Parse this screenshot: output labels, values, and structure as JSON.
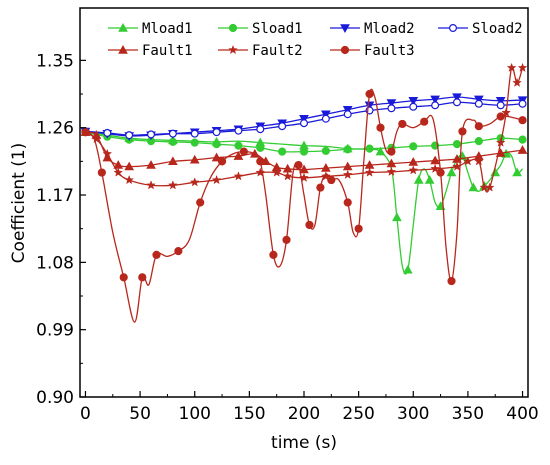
{
  "chart_data": {
    "type": "line",
    "title": "",
    "xlabel": "time (s)",
    "ylabel": "Coefficient (1)",
    "xlim": [
      -5,
      405
    ],
    "ylim": [
      0.9,
      1.42
    ],
    "xticks": [
      0,
      50,
      100,
      150,
      200,
      250,
      300,
      350,
      400
    ],
    "yticks": [
      0.9,
      0.99,
      1.08,
      1.17,
      1.26,
      1.35
    ],
    "ytick_labels": [
      "0.90",
      "0.99",
      "1.08",
      "1.17",
      "1.26",
      "1.35"
    ],
    "grid": false,
    "legend_position": "top",
    "series": [
      {
        "name": "Mload1",
        "color": "#33cc33",
        "marker": "triangle-up",
        "points": [
          [
            0,
            1.254
          ],
          [
            20,
            1.25
          ],
          [
            40,
            1.246
          ],
          [
            60,
            1.244
          ],
          [
            80,
            1.243
          ],
          [
            100,
            1.242
          ],
          [
            120,
            1.241
          ],
          [
            140,
            1.242
          ],
          [
            160,
            1.24
          ],
          [
            180,
            1.238
          ],
          [
            200,
            1.236
          ],
          [
            220,
            1.235
          ],
          [
            240,
            1.232
          ],
          [
            260,
            1.231
          ],
          [
            270,
            1.228
          ],
          [
            280,
            1.205
          ],
          [
            285,
            1.14
          ],
          [
            290,
            1.075
          ],
          [
            295,
            1.07
          ],
          [
            300,
            1.13
          ],
          [
            305,
            1.19
          ],
          [
            310,
            1.205
          ],
          [
            315,
            1.19
          ],
          [
            320,
            1.16
          ],
          [
            325,
            1.155
          ],
          [
            330,
            1.175
          ],
          [
            335,
            1.2
          ],
          [
            340,
            1.218
          ],
          [
            345,
            1.222
          ],
          [
            350,
            1.2
          ],
          [
            355,
            1.18
          ],
          [
            360,
            1.175
          ],
          [
            365,
            1.182
          ],
          [
            370,
            1.19
          ],
          [
            375,
            1.2
          ],
          [
            380,
            1.21
          ],
          [
            385,
            1.225
          ],
          [
            390,
            1.222
          ],
          [
            395,
            1.2
          ],
          [
            400,
            1.205
          ]
        ]
      },
      {
        "name": "Sload1",
        "color": "#33cc33",
        "marker": "circle",
        "points": [
          [
            0,
            1.254
          ],
          [
            20,
            1.248
          ],
          [
            40,
            1.244
          ],
          [
            60,
            1.242
          ],
          [
            80,
            1.241
          ],
          [
            100,
            1.24
          ],
          [
            120,
            1.238
          ],
          [
            140,
            1.236
          ],
          [
            160,
            1.233
          ],
          [
            180,
            1.228
          ],
          [
            200,
            1.228
          ],
          [
            220,
            1.229
          ],
          [
            240,
            1.231
          ],
          [
            260,
            1.232
          ],
          [
            280,
            1.233
          ],
          [
            300,
            1.235
          ],
          [
            320,
            1.236
          ],
          [
            340,
            1.238
          ],
          [
            360,
            1.242
          ],
          [
            380,
            1.246
          ],
          [
            400,
            1.244
          ]
        ]
      },
      {
        "name": "Mload2",
        "color": "#1a1ad9",
        "marker": "triangle-down",
        "points": [
          [
            0,
            1.255
          ],
          [
            20,
            1.252
          ],
          [
            40,
            1.249
          ],
          [
            60,
            1.25
          ],
          [
            80,
            1.252
          ],
          [
            100,
            1.254
          ],
          [
            120,
            1.256
          ],
          [
            140,
            1.258
          ],
          [
            160,
            1.262
          ],
          [
            180,
            1.266
          ],
          [
            200,
            1.272
          ],
          [
            220,
            1.278
          ],
          [
            240,
            1.284
          ],
          [
            260,
            1.29
          ],
          [
            280,
            1.293
          ],
          [
            300,
            1.296
          ],
          [
            320,
            1.298
          ],
          [
            340,
            1.301
          ],
          [
            360,
            1.298
          ],
          [
            380,
            1.296
          ],
          [
            400,
            1.297
          ]
        ]
      },
      {
        "name": "Sload2",
        "color": "#1a1ad9",
        "marker": "circle-open",
        "points": [
          [
            0,
            1.255
          ],
          [
            20,
            1.253
          ],
          [
            40,
            1.25
          ],
          [
            60,
            1.251
          ],
          [
            80,
            1.252
          ],
          [
            100,
            1.252
          ],
          [
            120,
            1.254
          ],
          [
            140,
            1.256
          ],
          [
            160,
            1.258
          ],
          [
            180,
            1.262
          ],
          [
            200,
            1.266
          ],
          [
            220,
            1.272
          ],
          [
            240,
            1.278
          ],
          [
            260,
            1.283
          ],
          [
            280,
            1.286
          ],
          [
            300,
            1.288
          ],
          [
            320,
            1.29
          ],
          [
            340,
            1.294
          ],
          [
            360,
            1.292
          ],
          [
            380,
            1.29
          ],
          [
            400,
            1.292
          ]
        ]
      },
      {
        "name": "Fault1",
        "color": "#b8271c",
        "marker": "triangle-up",
        "points": [
          [
            0,
            1.254
          ],
          [
            10,
            1.25
          ],
          [
            20,
            1.22
          ],
          [
            30,
            1.21
          ],
          [
            40,
            1.208
          ],
          [
            60,
            1.21
          ],
          [
            80,
            1.215
          ],
          [
            100,
            1.217
          ],
          [
            120,
            1.22
          ],
          [
            140,
            1.222
          ],
          [
            155,
            1.225
          ],
          [
            165,
            1.215
          ],
          [
            175,
            1.207
          ],
          [
            185,
            1.205
          ],
          [
            200,
            1.204
          ],
          [
            220,
            1.206
          ],
          [
            240,
            1.208
          ],
          [
            260,
            1.21
          ],
          [
            280,
            1.212
          ],
          [
            300,
            1.214
          ],
          [
            320,
            1.216
          ],
          [
            340,
            1.218
          ],
          [
            360,
            1.222
          ],
          [
            380,
            1.226
          ],
          [
            400,
            1.23
          ]
        ]
      },
      {
        "name": "Fault2",
        "color": "#b8271c",
        "marker": "star",
        "points": [
          [
            0,
            1.254
          ],
          [
            10,
            1.245
          ],
          [
            20,
            1.225
          ],
          [
            30,
            1.2
          ],
          [
            40,
            1.19
          ],
          [
            60,
            1.183
          ],
          [
            80,
            1.183
          ],
          [
            100,
            1.187
          ],
          [
            120,
            1.19
          ],
          [
            140,
            1.195
          ],
          [
            160,
            1.2
          ],
          [
            175,
            1.2
          ],
          [
            185,
            1.195
          ],
          [
            200,
            1.193
          ],
          [
            220,
            1.195
          ],
          [
            240,
            1.197
          ],
          [
            260,
            1.2
          ],
          [
            280,
            1.201
          ],
          [
            300,
            1.203
          ],
          [
            320,
            1.205
          ],
          [
            340,
            1.208
          ],
          [
            350,
            1.215
          ],
          [
            360,
            1.215
          ],
          [
            365,
            1.18
          ],
          [
            370,
            1.18
          ],
          [
            380,
            1.24
          ],
          [
            385,
            1.28
          ],
          [
            390,
            1.34
          ],
          [
            395,
            1.32
          ],
          [
            400,
            1.34
          ]
        ]
      },
      {
        "name": "Fault3",
        "color": "#b8271c",
        "marker": "circle",
        "points": [
          [
            0,
            1.254
          ],
          [
            8,
            1.245
          ],
          [
            15,
            1.2
          ],
          [
            25,
            1.12
          ],
          [
            35,
            1.06
          ],
          [
            45,
            1.0
          ],
          [
            52,
            1.06
          ],
          [
            58,
            1.05
          ],
          [
            65,
            1.09
          ],
          [
            75,
            1.088
          ],
          [
            85,
            1.095
          ],
          [
            95,
            1.11
          ],
          [
            105,
            1.16
          ],
          [
            115,
            1.195
          ],
          [
            125,
            1.215
          ],
          [
            135,
            1.225
          ],
          [
            145,
            1.228
          ],
          [
            155,
            1.225
          ],
          [
            160,
            1.215
          ],
          [
            165,
            1.17
          ],
          [
            172,
            1.09
          ],
          [
            178,
            1.075
          ],
          [
            184,
            1.11
          ],
          [
            190,
            1.2
          ],
          [
            195,
            1.21
          ],
          [
            200,
            1.17
          ],
          [
            205,
            1.13
          ],
          [
            210,
            1.13
          ],
          [
            215,
            1.18
          ],
          [
            220,
            1.198
          ],
          [
            225,
            1.19
          ],
          [
            232,
            1.19
          ],
          [
            240,
            1.16
          ],
          [
            245,
            1.12
          ],
          [
            250,
            1.125
          ],
          [
            255,
            1.22
          ],
          [
            260,
            1.305
          ],
          [
            265,
            1.3
          ],
          [
            270,
            1.26
          ],
          [
            275,
            1.23
          ],
          [
            280,
            1.228
          ],
          [
            285,
            1.255
          ],
          [
            290,
            1.265
          ],
          [
            300,
            1.26
          ],
          [
            310,
            1.268
          ],
          [
            318,
            1.272
          ],
          [
            325,
            1.2
          ],
          [
            330,
            1.1
          ],
          [
            335,
            1.055
          ],
          [
            340,
            1.12
          ],
          [
            345,
            1.255
          ],
          [
            355,
            1.27
          ],
          [
            360,
            1.262
          ],
          [
            370,
            1.265
          ],
          [
            380,
            1.275
          ],
          [
            390,
            1.274
          ],
          [
            400,
            1.27
          ]
        ]
      }
    ]
  }
}
